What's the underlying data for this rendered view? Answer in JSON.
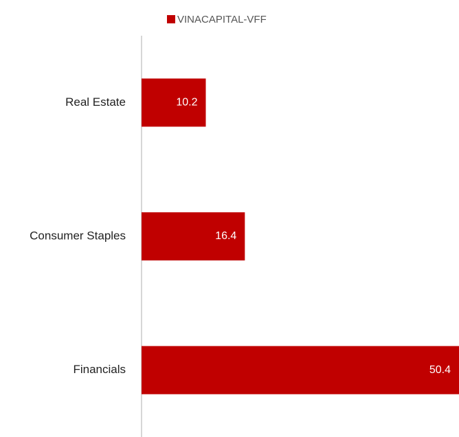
{
  "chart_data": {
    "type": "hbar",
    "categories": [
      "Real Estate",
      "Consumer Staples",
      "Financials"
    ],
    "series": [
      {
        "name": "VINACAPITAL-VFF",
        "color": "#c00000",
        "values": [
          10.2,
          16.4,
          50.4
        ]
      }
    ],
    "xlim": [
      0,
      50.4
    ],
    "legend": "top"
  }
}
